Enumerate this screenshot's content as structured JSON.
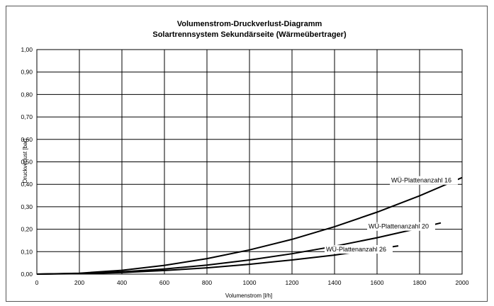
{
  "chart_data": {
    "type": "line",
    "title": "Volumenstrom-Druckverlust-Diagramm",
    "subtitle": "Solartrennsystem Sekundärseite (Wärmeübertrager)",
    "xlabel": "Volumenstrom [l/h]",
    "ylabel": "Druckverlust [bar]",
    "xlim": [
      0,
      3000
    ],
    "ylim": [
      0,
      1.0
    ],
    "x_ticks": [
      "0",
      "200",
      "400",
      "600",
      "800",
      "1000",
      "1200",
      "1400",
      "1600",
      "1800",
      "2000"
    ],
    "y_ticks": [
      "0,00",
      "0,10",
      "0,20",
      "0,30",
      "0,40",
      "0,50",
      "0,60",
      "0,70",
      "0,80",
      "0,90",
      "1,00"
    ],
    "grid": true,
    "series": [
      {
        "name": "WÜ-Plattenanzahl 16",
        "x": [
          0,
          200,
          400,
          600,
          800,
          1000,
          1200,
          1400,
          1600,
          1800,
          2000
        ],
        "y": [
          0.0,
          0.004,
          0.017,
          0.039,
          0.069,
          0.108,
          0.155,
          0.211,
          0.276,
          0.349,
          0.43
        ]
      },
      {
        "name": "WÜ-Plattenanzahl 20",
        "x": [
          0,
          200,
          400,
          600,
          800,
          1000,
          1200,
          1400,
          1600,
          1800,
          1900
        ],
        "y": [
          0.0,
          0.003,
          0.01,
          0.023,
          0.04,
          0.063,
          0.091,
          0.124,
          0.162,
          0.205,
          0.228
        ]
      },
      {
        "name": "WÜ-Plattenanzahl 26",
        "x": [
          0,
          200,
          400,
          600,
          800,
          1000,
          1200,
          1400,
          1600,
          1700
        ],
        "y": [
          0.0,
          0.002,
          0.007,
          0.016,
          0.028,
          0.044,
          0.063,
          0.085,
          0.112,
          0.126
        ]
      }
    ]
  }
}
